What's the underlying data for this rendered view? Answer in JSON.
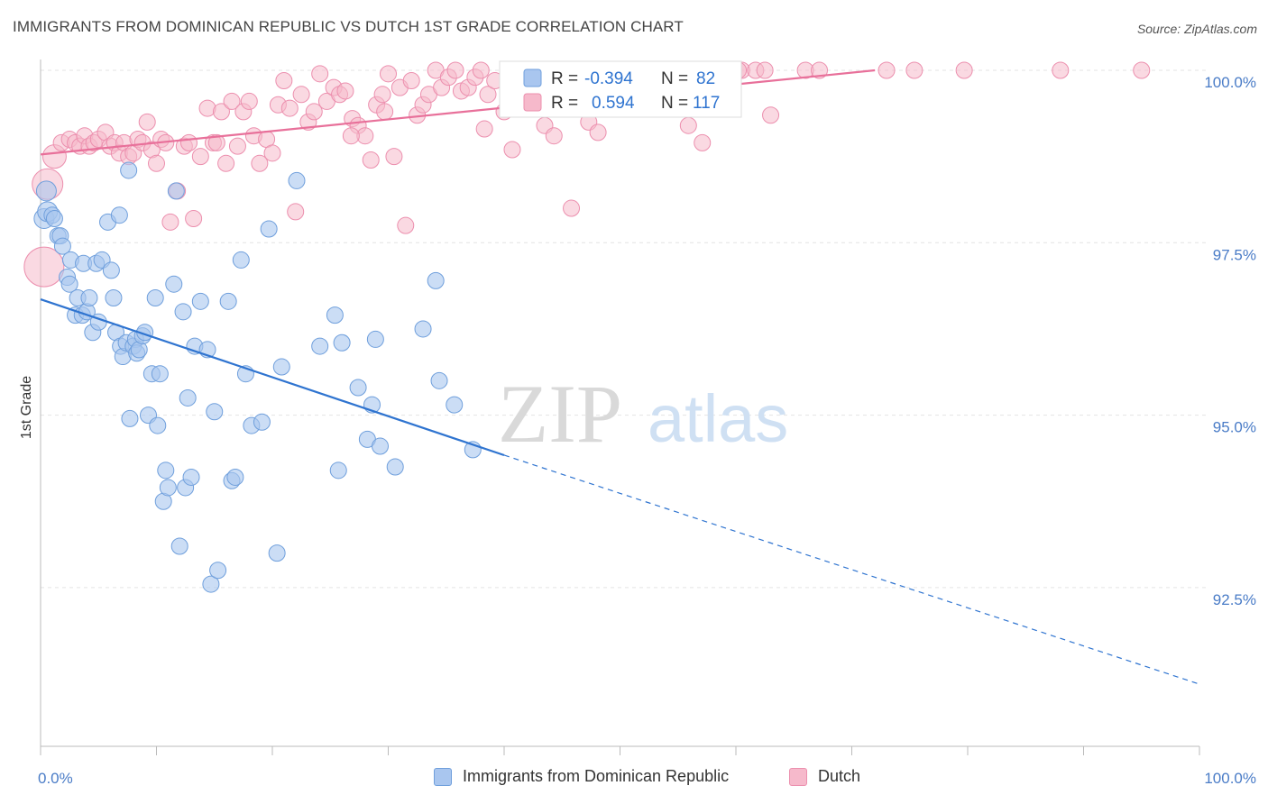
{
  "title": "IMMIGRANTS FROM DOMINICAN REPUBLIC VS DUTCH 1ST GRADE CORRELATION CHART",
  "source": "Source: ZipAtlas.com",
  "watermark": {
    "zip": "ZIP",
    "atlas": "atlas"
  },
  "legend_top": {
    "r_label": "R =",
    "n_label": "N =",
    "series": [
      {
        "r": "-0.394",
        "n": "82"
      },
      {
        "r": "0.594",
        "n": "117"
      }
    ]
  },
  "chart_data": {
    "type": "scatter",
    "title": "IMMIGRANTS FROM DOMINICAN REPUBLIC VS DUTCH 1ST GRADE CORRELATION CHART",
    "xlabel": "",
    "ylabel": "1st Grade",
    "xlim": [
      0,
      100
    ],
    "ylim": [
      90.5,
      100.5
    ],
    "x_tick_labels": [
      "0.0%",
      "100.0%"
    ],
    "y_ticks": [
      92.5,
      95.0,
      97.5,
      100.0
    ],
    "y_tick_labels": [
      "92.5%",
      "95.0%",
      "97.5%",
      "100.0%"
    ],
    "grid": true,
    "legend_position": "top-center",
    "colors": {
      "blue_fill": "#a9c6ef",
      "blue_stroke": "#6f9fdc",
      "blue_line": "#2f74d0",
      "pink_fill": "#f6b9cb",
      "pink_stroke": "#ec8fae",
      "pink_line": "#e8709a",
      "tick_text": "#4a7cc7"
    },
    "series": [
      {
        "name": "Immigrants from Dominican Republic",
        "r": -0.394,
        "n": 82,
        "trend": {
          "x0": 0,
          "y0": 96.68,
          "x1": 40,
          "y1": 94.42,
          "dash_to_x": 100,
          "dash_to_y": 91.1
        },
        "points": [
          [
            0.3,
            97.85
          ],
          [
            0.5,
            98.25
          ],
          [
            0.6,
            97.95
          ],
          [
            1.0,
            97.9
          ],
          [
            1.2,
            97.85
          ],
          [
            1.5,
            97.6
          ],
          [
            1.7,
            97.6
          ],
          [
            1.9,
            97.45
          ],
          [
            2.3,
            97.0
          ],
          [
            2.5,
            96.9
          ],
          [
            2.6,
            97.25
          ],
          [
            3.0,
            96.45
          ],
          [
            3.2,
            96.7
          ],
          [
            3.6,
            96.45
          ],
          [
            3.7,
            97.2
          ],
          [
            4.0,
            96.5
          ],
          [
            4.2,
            96.7
          ],
          [
            4.5,
            96.2
          ],
          [
            4.8,
            97.2
          ],
          [
            5.0,
            96.35
          ],
          [
            5.3,
            97.25
          ],
          [
            5.8,
            97.8
          ],
          [
            6.1,
            97.1
          ],
          [
            6.3,
            96.7
          ],
          [
            6.5,
            96.2
          ],
          [
            6.8,
            97.9
          ],
          [
            6.9,
            96.0
          ],
          [
            7.1,
            95.85
          ],
          [
            7.4,
            96.05
          ],
          [
            7.6,
            98.55
          ],
          [
            7.7,
            94.95
          ],
          [
            8.0,
            96.0
          ],
          [
            8.2,
            96.1
          ],
          [
            8.3,
            95.9
          ],
          [
            8.5,
            95.95
          ],
          [
            8.8,
            96.15
          ],
          [
            9.0,
            96.2
          ],
          [
            9.3,
            95.0
          ],
          [
            9.6,
            95.6
          ],
          [
            9.9,
            96.7
          ],
          [
            10.1,
            94.85
          ],
          [
            10.3,
            95.6
          ],
          [
            10.6,
            93.75
          ],
          [
            10.8,
            94.2
          ],
          [
            11.0,
            93.95
          ],
          [
            11.5,
            96.9
          ],
          [
            11.7,
            98.25
          ],
          [
            12.0,
            93.1
          ],
          [
            12.3,
            96.5
          ],
          [
            12.5,
            93.95
          ],
          [
            12.7,
            95.25
          ],
          [
            13.0,
            94.1
          ],
          [
            13.3,
            96.0
          ],
          [
            13.8,
            96.65
          ],
          [
            14.4,
            95.95
          ],
          [
            14.7,
            92.55
          ],
          [
            15.0,
            95.05
          ],
          [
            15.3,
            92.75
          ],
          [
            16.2,
            96.65
          ],
          [
            16.5,
            94.05
          ],
          [
            16.8,
            94.1
          ],
          [
            17.3,
            97.25
          ],
          [
            17.7,
            95.6
          ],
          [
            18.2,
            94.85
          ],
          [
            19.1,
            94.9
          ],
          [
            19.7,
            97.7
          ],
          [
            20.4,
            93.0
          ],
          [
            20.8,
            95.7
          ],
          [
            22.1,
            98.4
          ],
          [
            24.1,
            96.0
          ],
          [
            25.4,
            96.45
          ],
          [
            25.7,
            94.2
          ],
          [
            26.0,
            96.05
          ],
          [
            27.4,
            95.4
          ],
          [
            28.2,
            94.65
          ],
          [
            28.6,
            95.15
          ],
          [
            28.9,
            96.1
          ],
          [
            29.3,
            94.55
          ],
          [
            30.6,
            94.25
          ],
          [
            33.0,
            96.25
          ],
          [
            34.1,
            96.95
          ],
          [
            34.4,
            95.5
          ],
          [
            35.7,
            95.15
          ],
          [
            37.3,
            94.5
          ]
        ]
      },
      {
        "name": "Dutch",
        "r": 0.594,
        "n": 117,
        "trend": {
          "x0": 0,
          "y0": 98.78,
          "x1": 72,
          "y1": 100.0
        },
        "points": [
          [
            0.3,
            97.15
          ],
          [
            0.6,
            98.35
          ],
          [
            1.2,
            98.75
          ],
          [
            1.8,
            98.95
          ],
          [
            2.5,
            99.0
          ],
          [
            3.0,
            98.95
          ],
          [
            3.4,
            98.9
          ],
          [
            3.8,
            99.05
          ],
          [
            4.2,
            98.9
          ],
          [
            4.6,
            98.95
          ],
          [
            5.0,
            99.0
          ],
          [
            5.6,
            99.1
          ],
          [
            6.0,
            98.9
          ],
          [
            6.4,
            98.95
          ],
          [
            6.8,
            98.8
          ],
          [
            7.2,
            98.95
          ],
          [
            7.6,
            98.75
          ],
          [
            8.0,
            98.8
          ],
          [
            8.4,
            99.0
          ],
          [
            8.8,
            98.95
          ],
          [
            9.2,
            99.25
          ],
          [
            9.6,
            98.85
          ],
          [
            10.0,
            98.65
          ],
          [
            10.4,
            99.0
          ],
          [
            10.8,
            98.95
          ],
          [
            11.2,
            97.8
          ],
          [
            11.8,
            98.25
          ],
          [
            12.4,
            98.9
          ],
          [
            12.8,
            98.95
          ],
          [
            13.2,
            97.85
          ],
          [
            13.8,
            98.75
          ],
          [
            14.4,
            99.45
          ],
          [
            14.9,
            98.95
          ],
          [
            15.2,
            98.95
          ],
          [
            15.6,
            99.4
          ],
          [
            16.0,
            98.65
          ],
          [
            16.5,
            99.55
          ],
          [
            17.0,
            98.9
          ],
          [
            17.5,
            99.4
          ],
          [
            18.0,
            99.55
          ],
          [
            18.4,
            99.05
          ],
          [
            18.9,
            98.65
          ],
          [
            19.5,
            99.0
          ],
          [
            20.0,
            98.8
          ],
          [
            20.5,
            99.5
          ],
          [
            21.0,
            99.85
          ],
          [
            21.5,
            99.45
          ],
          [
            22.0,
            97.95
          ],
          [
            22.5,
            99.65
          ],
          [
            23.1,
            99.25
          ],
          [
            23.6,
            99.4
          ],
          [
            24.1,
            99.95
          ],
          [
            24.7,
            99.55
          ],
          [
            25.3,
            99.75
          ],
          [
            25.8,
            99.65
          ],
          [
            26.3,
            99.7
          ],
          [
            26.9,
            99.3
          ],
          [
            27.4,
            99.2
          ],
          [
            28.0,
            99.05
          ],
          [
            28.5,
            98.7
          ],
          [
            29.0,
            99.5
          ],
          [
            29.5,
            99.65
          ],
          [
            30.0,
            99.95
          ],
          [
            30.5,
            98.75
          ],
          [
            31.0,
            99.75
          ],
          [
            31.5,
            97.75
          ],
          [
            32.0,
            99.85
          ],
          [
            32.5,
            99.35
          ],
          [
            33.0,
            99.5
          ],
          [
            33.5,
            99.65
          ],
          [
            34.1,
            100.0
          ],
          [
            34.6,
            99.75
          ],
          [
            35.2,
            99.9
          ],
          [
            35.8,
            100.0
          ],
          [
            36.3,
            99.7
          ],
          [
            36.9,
            99.75
          ],
          [
            37.5,
            99.9
          ],
          [
            38.0,
            100.0
          ],
          [
            38.6,
            99.65
          ],
          [
            39.2,
            99.85
          ],
          [
            40.0,
            99.4
          ],
          [
            40.7,
            98.85
          ],
          [
            41.4,
            99.55
          ],
          [
            42.1,
            99.8
          ],
          [
            42.8,
            99.95
          ],
          [
            43.5,
            99.2
          ],
          [
            44.3,
            99.05
          ],
          [
            45.0,
            99.85
          ],
          [
            45.8,
            98.0
          ],
          [
            46.6,
            99.45
          ],
          [
            47.3,
            99.25
          ],
          [
            48.1,
            99.1
          ],
          [
            48.9,
            100.0
          ],
          [
            49.8,
            99.8
          ],
          [
            51.0,
            99.85
          ],
          [
            52.3,
            100.0
          ],
          [
            53.5,
            99.85
          ],
          [
            54.7,
            100.0
          ],
          [
            55.9,
            99.2
          ],
          [
            57.1,
            98.95
          ],
          [
            58.3,
            99.9
          ],
          [
            60.5,
            100.0
          ],
          [
            61.7,
            100.0
          ],
          [
            63.0,
            99.35
          ],
          [
            66.0,
            100.0
          ],
          [
            67.2,
            100.0
          ],
          [
            73.0,
            100.0
          ],
          [
            75.4,
            100.0
          ],
          [
            79.7,
            100.0
          ],
          [
            88.0,
            100.0
          ],
          [
            95.0,
            100.0
          ],
          [
            60.2,
            100.0
          ],
          [
            44.5,
            99.7
          ],
          [
            38.3,
            99.15
          ],
          [
            29.7,
            99.4
          ],
          [
            26.8,
            99.05
          ],
          [
            62.5,
            100.0
          ]
        ]
      }
    ]
  },
  "bottom_legend": [
    {
      "label": "Immigrants from Dominican Republic"
    },
    {
      "label": "Dutch"
    }
  ]
}
